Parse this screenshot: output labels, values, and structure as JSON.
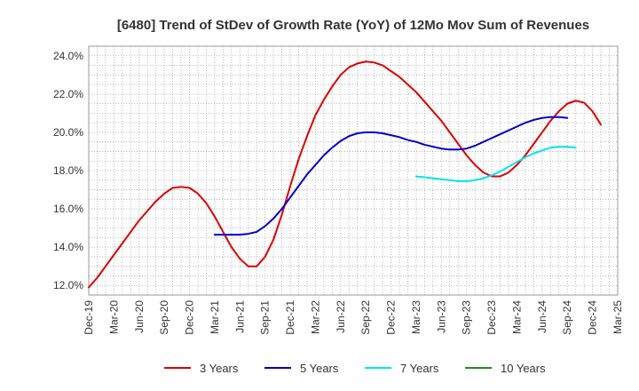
{
  "chart_data": {
    "type": "line",
    "title": "[6480]  Trend of StDev of Growth Rate (YoY) of 12Mo Mov Sum of Revenues",
    "xlabel": "",
    "ylabel": "",
    "ylim": [
      11.5,
      24.5
    ],
    "yticks": [
      12.0,
      14.0,
      16.0,
      18.0,
      20.0,
      22.0,
      24.0
    ],
    "ytick_labels": [
      "12.0%",
      "14.0%",
      "16.0%",
      "18.0%",
      "20.0%",
      "22.0%",
      "24.0%"
    ],
    "x_start": "Dec-19",
    "x_end": "Mar-25",
    "xtick_labels": [
      "Dec-19",
      "Mar-20",
      "Jun-20",
      "Sep-20",
      "Dec-20",
      "Mar-21",
      "Jun-21",
      "Sep-21",
      "Dec-21",
      "Mar-22",
      "Jun-22",
      "Sep-22",
      "Dec-22",
      "Mar-23",
      "Jun-23",
      "Sep-23",
      "Dec-23",
      "Mar-24",
      "Jun-24",
      "Sep-24",
      "Dec-24",
      "Mar-25"
    ],
    "grid": true,
    "legend_position": "bottom",
    "series": [
      {
        "name": "3 Years",
        "color": "#dd0000",
        "start_month_index": 0,
        "values": [
          11.9,
          12.4,
          13.0,
          13.6,
          14.2,
          14.8,
          15.4,
          15.9,
          16.4,
          16.8,
          17.1,
          17.15,
          17.1,
          16.8,
          16.3,
          15.6,
          14.8,
          14.0,
          13.4,
          13.0,
          13.0,
          13.5,
          14.4,
          15.7,
          17.2,
          18.6,
          19.8,
          20.9,
          21.7,
          22.4,
          23.0,
          23.4,
          23.6,
          23.7,
          23.65,
          23.5,
          23.2,
          22.9,
          22.5,
          22.1,
          21.6,
          21.1,
          20.6,
          20.0,
          19.4,
          18.8,
          18.3,
          17.9,
          17.7,
          17.7,
          17.9,
          18.3,
          18.8,
          19.4,
          20.0,
          20.6,
          21.1,
          21.5,
          21.65,
          21.55,
          21.1,
          20.4
        ]
      },
      {
        "name": "5 Years",
        "color": "#0000cc",
        "start_month_index": 15,
        "values": [
          14.65,
          14.65,
          14.65,
          14.65,
          14.7,
          14.8,
          15.1,
          15.5,
          16.0,
          16.6,
          17.2,
          17.8,
          18.3,
          18.8,
          19.2,
          19.55,
          19.8,
          19.95,
          20.0,
          20.0,
          19.95,
          19.85,
          19.75,
          19.6,
          19.5,
          19.35,
          19.25,
          19.15,
          19.1,
          19.1,
          19.15,
          19.3,
          19.5,
          19.7,
          19.9,
          20.1,
          20.3,
          20.5,
          20.65,
          20.75,
          20.8,
          20.8,
          20.75
        ]
      },
      {
        "name": "7 Years",
        "color": "#00e5ee",
        "start_month_index": 39,
        "values": [
          17.7,
          17.65,
          17.6,
          17.55,
          17.5,
          17.45,
          17.45,
          17.5,
          17.6,
          17.75,
          17.95,
          18.2,
          18.45,
          18.7,
          18.9,
          19.05,
          19.2,
          19.25,
          19.25,
          19.2
        ]
      },
      {
        "name": "10 Years",
        "color": "#228b22",
        "start_month_index": 0,
        "values": []
      }
    ]
  }
}
